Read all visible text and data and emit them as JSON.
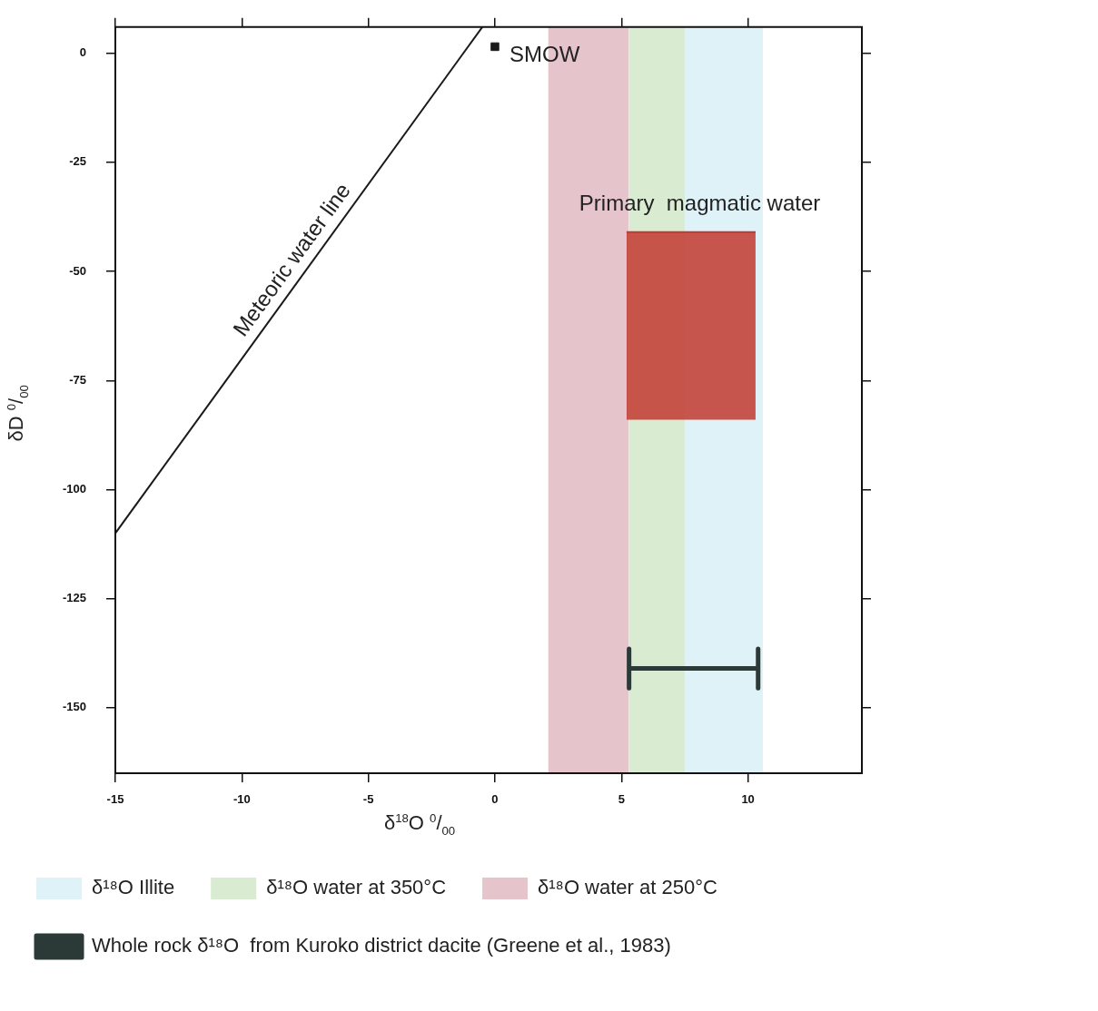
{
  "chart_data": {
    "type": "scatter",
    "xlabel": "δ$^{18}$O $^{0}$/$_{00}$",
    "ylabel": "δD $^{0}$/$_{00}$",
    "xlim": [
      -15,
      14.5
    ],
    "ylim": [
      -165,
      6
    ],
    "xticks": [
      -15,
      -10,
      -5,
      0,
      5,
      10
    ],
    "yticks": [
      0,
      -25,
      -50,
      -75,
      -100,
      -125,
      -150
    ],
    "grid": false,
    "legend": "bottom",
    "bands": [
      {
        "axis": "x",
        "from": 7.5,
        "to": 10.6,
        "label": "δ¹⁸O Illite",
        "color": "#dff2f8"
      },
      {
        "axis": "x",
        "from": 5.3,
        "to": 8.4,
        "label": "δ¹⁸O water at 350°C",
        "color": "#d9ecd1"
      },
      {
        "axis": "x",
        "from": 2.1,
        "to": 5.3,
        "label": "δ¹⁸O water at 250°C",
        "color": "#e6c4cc"
      }
    ],
    "series": [
      {
        "type": "line",
        "name": "Meteoric water line",
        "color": "#1a1a1a",
        "x": [
          -15,
          -0.5
        ],
        "values": [
          -110,
          6
        ]
      },
      {
        "name": "SMOW",
        "color": "#1a1a1a",
        "marker": "square",
        "x": [
          0
        ],
        "values": [
          1.5
        ]
      },
      {
        "type": "line",
        "name": "Primary  magmatic water",
        "color": "#c23a30",
        "x": [
          5.2,
          10.3
        ],
        "values": [
          -41,
          -41
        ],
        "lower": [
          -84,
          -84
        ],
        "upper": [
          -41,
          -41
        ]
      },
      {
        "type": "line",
        "name": "Whole rock δ¹⁸O  from Kuroko district dacite (Greene et al., 1983)",
        "color": "#2b3a36",
        "x": [
          5.3,
          5.3,
          5.3,
          10.4,
          10.4,
          10.4
        ],
        "values": [
          -136.5,
          -145.5,
          -141,
          -141,
          -136.5,
          -145.5
        ]
      }
    ]
  }
}
